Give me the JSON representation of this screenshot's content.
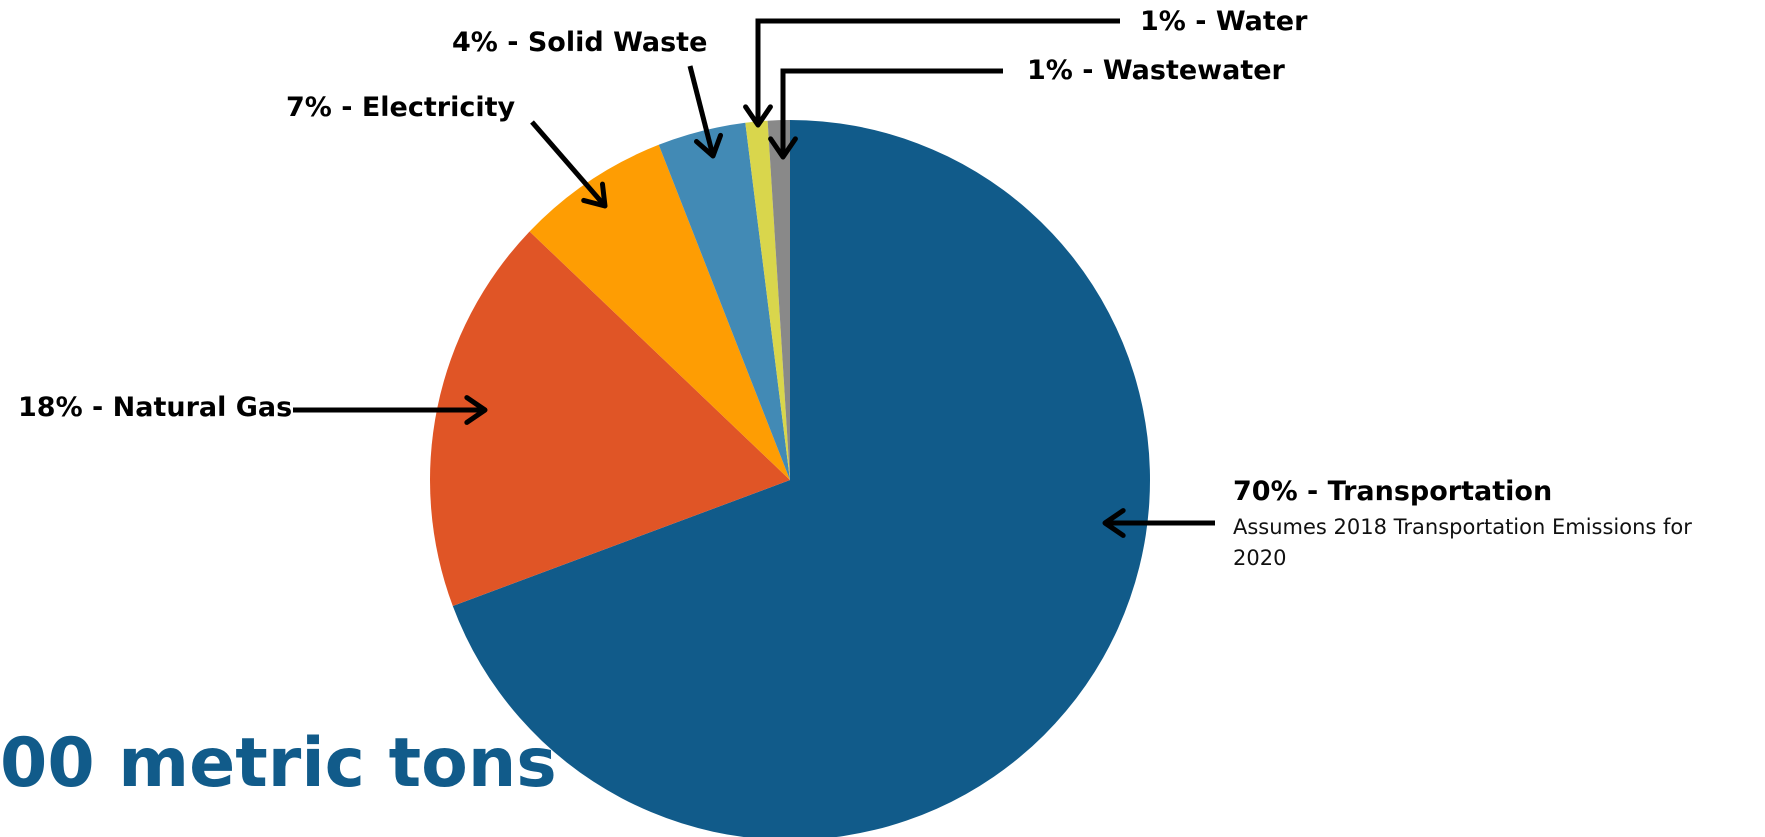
{
  "chart_data": {
    "type": "pie",
    "title": "",
    "slices": [
      {
        "label": "70% - Transportation",
        "value": 70,
        "color": "#115b8a",
        "note": "Assumes 2018 Transportation Emissions for 2020"
      },
      {
        "label": "18% - Natural Gas",
        "value": 18,
        "color": "#e05526"
      },
      {
        "label": "7% - Electricity",
        "value": 7,
        "color": "#fe9d03"
      },
      {
        "label": "4% - Solid Waste",
        "value": 4,
        "color": "#428ab5"
      },
      {
        "label": "1% - Water",
        "value": 1,
        "color": "#d9d64c"
      },
      {
        "label": "1% - Wastewater",
        "value": 1,
        "color": "#898989"
      }
    ],
    "start_angle_deg": 0,
    "direction": "clockwise",
    "legend": "none"
  },
  "total_label": "00 metric tons",
  "colors": {
    "total_text": "#115b8a",
    "arrow": "#000000",
    "background": "#ffffff"
  }
}
